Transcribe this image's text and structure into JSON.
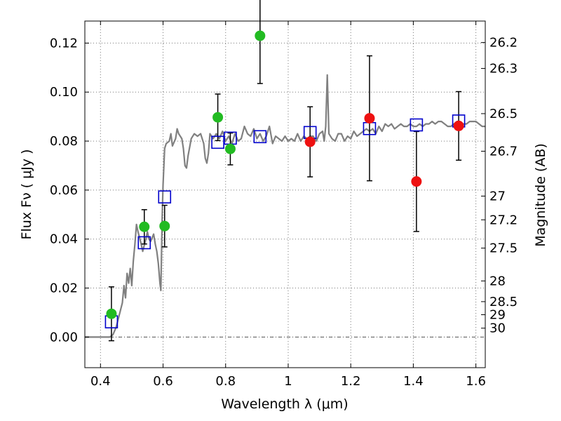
{
  "chart_data": {
    "type": "scatter",
    "xlabel": "Wavelength  λ (μm)",
    "ylabel": "Flux  Fν  ( μJy )",
    "ylabel_right": "Magnitude (AB)",
    "xlim": [
      0.35,
      1.63
    ],
    "ylim": [
      -0.0125,
      0.129
    ],
    "grid": true,
    "x_ticks": [
      {
        "value": 0.4,
        "label": "0.4"
      },
      {
        "value": 0.6,
        "label": "0.6"
      },
      {
        "value": 0.8,
        "label": "0.8"
      },
      {
        "value": 1.0,
        "label": "1"
      },
      {
        "value": 1.2,
        "label": "1.2"
      },
      {
        "value": 1.4,
        "label": "1.4"
      },
      {
        "value": 1.6,
        "label": "1.6"
      }
    ],
    "y_ticks": [
      {
        "value": 0.0,
        "label": "0.00"
      },
      {
        "value": 0.02,
        "label": "0.02"
      },
      {
        "value": 0.04,
        "label": "0.04"
      },
      {
        "value": 0.06,
        "label": "0.06"
      },
      {
        "value": 0.08,
        "label": "0.08"
      },
      {
        "value": 0.1,
        "label": "0.10"
      },
      {
        "value": 0.12,
        "label": "0.12"
      }
    ],
    "mag_ticks": [
      {
        "value": 26.2,
        "label": "26.2"
      },
      {
        "value": 26.3,
        "label": "26.3"
      },
      {
        "value": 26.5,
        "label": "26.5"
      },
      {
        "value": 26.7,
        "label": "26.7"
      },
      {
        "value": 27.0,
        "label": "27"
      },
      {
        "value": 27.2,
        "label": "27.2"
      },
      {
        "value": 27.5,
        "label": "27.5"
      },
      {
        "value": 28.0,
        "label": "28"
      },
      {
        "value": 28.5,
        "label": "28.5"
      },
      {
        "value": 29.0,
        "label": "29"
      },
      {
        "value": 30.0,
        "label": "30"
      }
    ],
    "mag_zeropoint": 23.9,
    "observed_hst": [
      {
        "x": 0.435,
        "y": 0.0095,
        "err": 0.011
      },
      {
        "x": 0.54,
        "y": 0.045,
        "err": 0.007
      },
      {
        "x": 0.605,
        "y": 0.0453,
        "err": 0.0085
      },
      {
        "x": 0.775,
        "y": 0.0897,
        "err": 0.0095
      },
      {
        "x": 0.815,
        "y": 0.0768,
        "err": 0.0065
      },
      {
        "x": 0.91,
        "y": 0.123,
        "err": 0.0195
      }
    ],
    "observed_ir": [
      {
        "x": 1.07,
        "y": 0.0797,
        "err": 0.0143
      },
      {
        "x": 1.26,
        "y": 0.0893,
        "err": 0.0255
      },
      {
        "x": 1.41,
        "y": 0.0635,
        "err": 0.0204
      },
      {
        "x": 1.545,
        "y": 0.0862,
        "err": 0.014
      }
    ],
    "model_photometry": [
      {
        "x": 0.435,
        "y": 0.0062
      },
      {
        "x": 0.54,
        "y": 0.0385
      },
      {
        "x": 0.605,
        "y": 0.0572
      },
      {
        "x": 0.775,
        "y": 0.0795
      },
      {
        "x": 0.815,
        "y": 0.0812
      },
      {
        "x": 0.91,
        "y": 0.0818
      },
      {
        "x": 1.07,
        "y": 0.0835
      },
      {
        "x": 1.26,
        "y": 0.0851
      },
      {
        "x": 1.41,
        "y": 0.0866
      },
      {
        "x": 1.545,
        "y": 0.0882
      }
    ],
    "model_spectrum": [
      [
        0.35,
        0.0
      ],
      [
        0.43,
        0.0
      ],
      [
        0.44,
        0.001
      ],
      [
        0.45,
        0.004
      ],
      [
        0.46,
        0.009
      ],
      [
        0.47,
        0.014
      ],
      [
        0.475,
        0.021
      ],
      [
        0.48,
        0.016
      ],
      [
        0.485,
        0.026
      ],
      [
        0.49,
        0.022
      ],
      [
        0.495,
        0.028
      ],
      [
        0.5,
        0.021
      ],
      [
        0.505,
        0.031
      ],
      [
        0.51,
        0.038
      ],
      [
        0.515,
        0.046
      ],
      [
        0.52,
        0.043
      ],
      [
        0.53,
        0.038
      ],
      [
        0.535,
        0.035
      ],
      [
        0.545,
        0.04
      ],
      [
        0.55,
        0.043
      ],
      [
        0.555,
        0.04
      ],
      [
        0.56,
        0.039
      ],
      [
        0.57,
        0.042
      ],
      [
        0.575,
        0.038
      ],
      [
        0.58,
        0.035
      ],
      [
        0.585,
        0.03
      ],
      [
        0.59,
        0.022
      ],
      [
        0.593,
        0.019
      ],
      [
        0.597,
        0.048
      ],
      [
        0.6,
        0.062
      ],
      [
        0.605,
        0.077
      ],
      [
        0.61,
        0.079
      ],
      [
        0.62,
        0.08
      ],
      [
        0.625,
        0.083
      ],
      [
        0.63,
        0.078
      ],
      [
        0.64,
        0.081
      ],
      [
        0.645,
        0.085
      ],
      [
        0.65,
        0.083
      ],
      [
        0.66,
        0.081
      ],
      [
        0.665,
        0.077
      ],
      [
        0.67,
        0.07
      ],
      [
        0.675,
        0.069
      ],
      [
        0.68,
        0.074
      ],
      [
        0.69,
        0.081
      ],
      [
        0.7,
        0.083
      ],
      [
        0.71,
        0.082
      ],
      [
        0.72,
        0.083
      ],
      [
        0.73,
        0.079
      ],
      [
        0.735,
        0.073
      ],
      [
        0.74,
        0.071
      ],
      [
        0.745,
        0.075
      ],
      [
        0.75,
        0.083
      ],
      [
        0.76,
        0.081
      ],
      [
        0.77,
        0.083
      ],
      [
        0.78,
        0.081
      ],
      [
        0.79,
        0.084
      ],
      [
        0.8,
        0.08
      ],
      [
        0.81,
        0.082
      ],
      [
        0.82,
        0.079
      ],
      [
        0.83,
        0.083
      ],
      [
        0.84,
        0.08
      ],
      [
        0.85,
        0.081
      ],
      [
        0.86,
        0.086
      ],
      [
        0.87,
        0.083
      ],
      [
        0.88,
        0.082
      ],
      [
        0.89,
        0.085
      ],
      [
        0.9,
        0.081
      ],
      [
        0.91,
        0.083
      ],
      [
        0.92,
        0.08
      ],
      [
        0.93,
        0.082
      ],
      [
        0.94,
        0.086
      ],
      [
        0.95,
        0.079
      ],
      [
        0.96,
        0.082
      ],
      [
        0.97,
        0.081
      ],
      [
        0.98,
        0.08
      ],
      [
        0.99,
        0.082
      ],
      [
        1.0,
        0.08
      ],
      [
        1.01,
        0.081
      ],
      [
        1.02,
        0.08
      ],
      [
        1.03,
        0.083
      ],
      [
        1.04,
        0.08
      ],
      [
        1.05,
        0.082
      ],
      [
        1.06,
        0.081
      ],
      [
        1.07,
        0.082
      ],
      [
        1.08,
        0.082
      ],
      [
        1.09,
        0.08
      ],
      [
        1.1,
        0.083
      ],
      [
        1.11,
        0.084
      ],
      [
        1.115,
        0.08
      ],
      [
        1.12,
        0.086
      ],
      [
        1.125,
        0.107
      ],
      [
        1.13,
        0.083
      ],
      [
        1.14,
        0.081
      ],
      [
        1.15,
        0.08
      ],
      [
        1.16,
        0.083
      ],
      [
        1.17,
        0.083
      ],
      [
        1.18,
        0.08
      ],
      [
        1.19,
        0.082
      ],
      [
        1.2,
        0.081
      ],
      [
        1.21,
        0.084
      ],
      [
        1.22,
        0.082
      ],
      [
        1.23,
        0.083
      ],
      [
        1.24,
        0.084
      ],
      [
        1.25,
        0.085
      ],
      [
        1.26,
        0.084
      ],
      [
        1.27,
        0.085
      ],
      [
        1.28,
        0.083
      ],
      [
        1.29,
        0.086
      ],
      [
        1.3,
        0.084
      ],
      [
        1.31,
        0.087
      ],
      [
        1.32,
        0.086
      ],
      [
        1.33,
        0.087
      ],
      [
        1.34,
        0.085
      ],
      [
        1.35,
        0.086
      ],
      [
        1.36,
        0.087
      ],
      [
        1.37,
        0.086
      ],
      [
        1.38,
        0.086
      ],
      [
        1.39,
        0.087
      ],
      [
        1.4,
        0.086
      ],
      [
        1.41,
        0.086
      ],
      [
        1.42,
        0.087
      ],
      [
        1.43,
        0.086
      ],
      [
        1.44,
        0.087
      ],
      [
        1.45,
        0.087
      ],
      [
        1.46,
        0.088
      ],
      [
        1.47,
        0.087
      ],
      [
        1.48,
        0.088
      ],
      [
        1.49,
        0.088
      ],
      [
        1.5,
        0.087
      ],
      [
        1.51,
        0.086
      ],
      [
        1.52,
        0.086
      ],
      [
        1.53,
        0.087
      ],
      [
        1.54,
        0.088
      ],
      [
        1.55,
        0.087
      ],
      [
        1.56,
        0.087
      ],
      [
        1.57,
        0.087
      ],
      [
        1.58,
        0.088
      ],
      [
        1.59,
        0.088
      ],
      [
        1.6,
        0.088
      ],
      [
        1.61,
        0.087
      ],
      [
        1.62,
        0.086
      ],
      [
        1.63,
        0.086
      ]
    ],
    "colors": {
      "hst": "#22bb22",
      "ir": "#ee1111",
      "model_box": "#0000cc",
      "spectrum": "#808080",
      "errorbar": "#000000",
      "grid": "#777777"
    }
  }
}
